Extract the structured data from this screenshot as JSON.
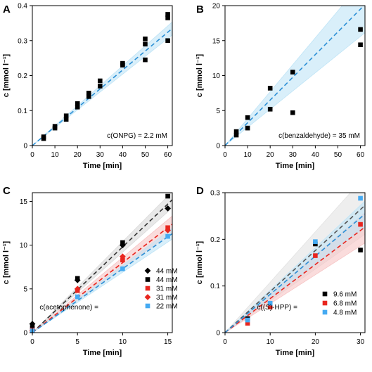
{
  "chart_data": [
    {
      "type": "scatter",
      "panel_label": "A",
      "xlabel": "Time [min]",
      "ylabel": "c [mmol l⁻¹]",
      "xlim": [
        0,
        62
      ],
      "ylim": [
        0,
        0.4
      ],
      "xticks": [
        0,
        10,
        20,
        30,
        40,
        50,
        60
      ],
      "yticks": [
        0,
        0.1,
        0.2,
        0.3,
        0.4
      ],
      "ytick_labels": [
        "0",
        "0.1",
        "0.2",
        "0.3",
        "0.4"
      ],
      "annotation": "c(ONPG) = 2.2 mM",
      "fit": {
        "color": "#2b8fd6",
        "band_color": "#bfe4f6",
        "slope": 0.0054,
        "slope_low": 0.0051,
        "slope_high": 0.0057
      },
      "series": [
        {
          "marker": "square",
          "color": "#000000",
          "x": [
            5,
            5,
            10,
            10,
            15,
            15,
            20,
            20,
            25,
            25,
            30,
            30,
            40,
            40,
            50,
            50,
            50,
            60,
            60,
            60
          ],
          "y": [
            0.02,
            0.025,
            0.05,
            0.055,
            0.075,
            0.085,
            0.11,
            0.12,
            0.14,
            0.15,
            0.17,
            0.185,
            0.23,
            0.235,
            0.29,
            0.305,
            0.245,
            0.375,
            0.365,
            0.3
          ]
        }
      ]
    },
    {
      "type": "scatter",
      "panel_label": "B",
      "xlabel": "Time [min]",
      "ylabel": "c [mmol l⁻¹]",
      "xlim": [
        0,
        62
      ],
      "ylim": [
        0,
        20
      ],
      "xticks": [
        0,
        10,
        20,
        30,
        40,
        50,
        60
      ],
      "yticks": [
        0,
        5,
        10,
        15,
        20
      ],
      "ytick_labels": [
        "0",
        "5",
        "10",
        "15",
        "20"
      ],
      "annotation": "c(benzaldehyde) = 35 mM",
      "fit": {
        "color": "#2b8fd6",
        "band_color": "#bfe4f6",
        "slope": 0.325,
        "slope_low": 0.26,
        "slope_high": 0.385
      },
      "series": [
        {
          "marker": "square",
          "color": "#000000",
          "x": [
            5,
            5,
            10,
            10,
            20,
            20,
            30,
            30,
            60,
            60
          ],
          "y": [
            1.5,
            2.0,
            4.0,
            2.5,
            8.2,
            5.2,
            10.5,
            4.7,
            16.6,
            14.4
          ]
        }
      ]
    },
    {
      "type": "scatter",
      "panel_label": "C",
      "xlabel": "Time [min]",
      "ylabel": "c [mmol l⁻¹]",
      "xlim": [
        0,
        15.5
      ],
      "ylim": [
        0,
        16
      ],
      "xticks": [
        0,
        5,
        10,
        15
      ],
      "yticks": [
        0,
        5,
        10,
        15
      ],
      "ytick_labels": [
        "0",
        "5",
        "10",
        "15"
      ],
      "annotation": "c(acetophenone) =",
      "fits": [
        {
          "color": "#333333",
          "band_color": "#d8d8d8",
          "slope": 0.98,
          "slope_low": 0.92,
          "slope_high": 1.04
        },
        {
          "color": "#e8261f",
          "band_color": "#f6c4c4",
          "slope": 0.8,
          "slope_low": 0.74,
          "slope_high": 0.86
        },
        {
          "color": "#2b8fd6",
          "band_color": "#bfe4f6",
          "slope": 0.73,
          "slope_low": 0.69,
          "slope_high": 0.77
        }
      ],
      "series": [
        {
          "name": "44 mM",
          "marker": "diamond",
          "color": "#000000",
          "x": [
            0,
            5,
            10,
            15
          ],
          "y": [
            1.0,
            6.0,
            10.0,
            14.2
          ]
        },
        {
          "name": "44 mM",
          "marker": "square",
          "color": "#000000",
          "x": [
            0,
            5,
            10,
            15
          ],
          "y": [
            0.6,
            6.2,
            10.3,
            15.6
          ]
        },
        {
          "name": "31 mM",
          "marker": "square",
          "color": "#e8261f",
          "x": [
            0,
            5,
            10,
            15
          ],
          "y": [
            0.3,
            4.8,
            8.3,
            12.0
          ]
        },
        {
          "name": "31 mM",
          "marker": "diamond",
          "color": "#e8261f",
          "x": [
            0,
            5,
            10,
            15
          ],
          "y": [
            0.2,
            5.0,
            8.7,
            11.7
          ]
        },
        {
          "name": "22 mM",
          "marker": "square",
          "color": "#45aaf2",
          "x": [
            0,
            5,
            10,
            15
          ],
          "y": [
            0.2,
            4.1,
            7.3,
            11.0
          ]
        }
      ]
    },
    {
      "type": "scatter",
      "panel_label": "D",
      "xlabel": "Time [min]",
      "ylabel": "c [mmol l⁻¹]",
      "xlim": [
        0,
        31
      ],
      "ylim": [
        0,
        0.3
      ],
      "xticks": [
        0,
        10,
        20,
        30
      ],
      "yticks": [
        0,
        0.1,
        0.2,
        0.3
      ],
      "ytick_labels": [
        "0",
        "0.1",
        "0.2",
        "0.3"
      ],
      "annotation_parts": [
        "c((",
        "S",
        ")-HPP) ="
      ],
      "fits": [
        {
          "color": "#555555",
          "band_color": "#e2e2e2",
          "slope": 0.0088,
          "slope_low": 0.0068,
          "slope_high": 0.0108
        },
        {
          "color": "#e8261f",
          "band_color": "#f6c4c4",
          "slope": 0.0073,
          "slope_low": 0.0062,
          "slope_high": 0.0083
        },
        {
          "color": "#2b8fd6",
          "band_color": "#bfe4f6",
          "slope": 0.0082,
          "slope_low": 0.0073,
          "slope_high": 0.0091
        }
      ],
      "series": [
        {
          "name": "9.6 mM",
          "marker": "square",
          "color": "#000000",
          "x": [
            5,
            10,
            20,
            30
          ],
          "y": [
            0.03,
            0.06,
            0.19,
            0.177
          ]
        },
        {
          "name": "6.8 mM",
          "marker": "square",
          "color": "#e8261f",
          "x": [
            5,
            10,
            20,
            30
          ],
          "y": [
            0.02,
            0.055,
            0.165,
            0.232
          ]
        },
        {
          "name": "4.8 mM",
          "marker": "square",
          "color": "#45aaf2",
          "x": [
            5,
            10,
            20,
            30
          ],
          "y": [
            0.027,
            0.063,
            0.195,
            0.288
          ]
        }
      ]
    }
  ]
}
